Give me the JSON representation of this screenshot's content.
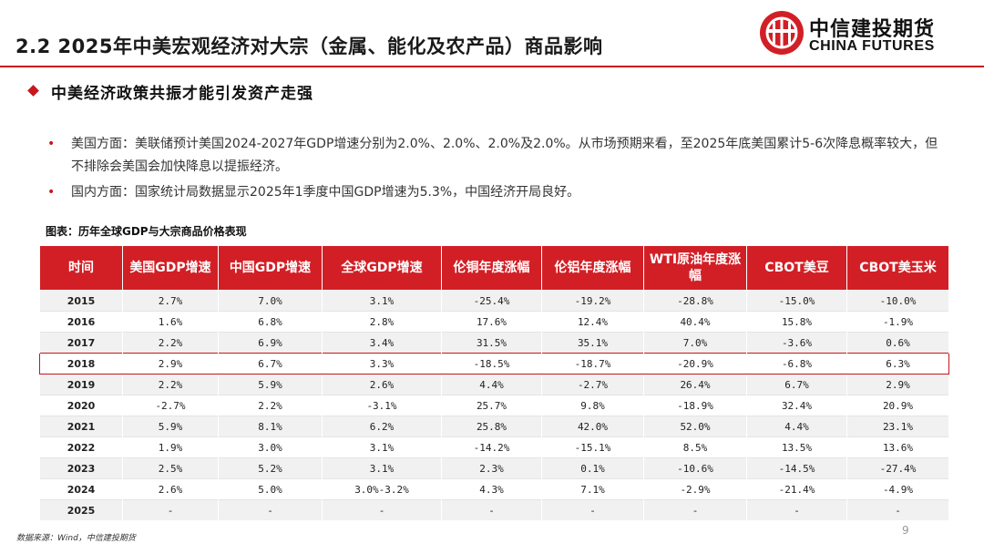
{
  "header": {
    "title": "2.2 2025年中美宏观经济对大宗（金属、能化及农产品）商品影响",
    "logo_cn": "中信建投期货",
    "logo_en": "CHINA FUTURES"
  },
  "section": {
    "heading": "中美经济政策共振才能引发资产走强"
  },
  "bullets": [
    "美国方面：美联储预计美国2024-2027年GDP增速分别为2.0%、2.0%、2.0%及2.0%。从市场预期来看，至2025年底美国累计5-6次降息概率较大，但不排除会美国会加快降息以提振经济。",
    "国内方面：国家统计局数据显示2025年1季度中国GDP增速为5.3%，中国经济开局良好。"
  ],
  "table": {
    "caption": "图表：历年全球GDP与大宗商品价格表现",
    "headers": [
      "时间",
      "美国GDP增速",
      "中国GDP增速",
      "全球GDP增速",
      "伦铜年度涨幅",
      "伦铝年度涨幅",
      "WTI原油年度涨幅",
      "CBOT美豆",
      "CBOT美玉米"
    ],
    "rows": [
      [
        "2015",
        "2.7%",
        "7.0%",
        "3.1%",
        "-25.4%",
        "-19.2%",
        "-28.8%",
        "-15.0%",
        "-10.0%"
      ],
      [
        "2016",
        "1.6%",
        "6.8%",
        "2.8%",
        "17.6%",
        "12.4%",
        "40.4%",
        "15.8%",
        "-1.9%"
      ],
      [
        "2017",
        "2.2%",
        "6.9%",
        "3.4%",
        "31.5%",
        "35.1%",
        "7.0%",
        "-3.6%",
        "0.6%"
      ],
      [
        "2018",
        "2.9%",
        "6.7%",
        "3.3%",
        "-18.5%",
        "-18.7%",
        "-20.9%",
        "-6.8%",
        "6.3%"
      ],
      [
        "2019",
        "2.2%",
        "5.9%",
        "2.6%",
        "4.4%",
        "-2.7%",
        "26.4%",
        "6.7%",
        "2.9%"
      ],
      [
        "2020",
        "-2.7%",
        "2.2%",
        "-3.1%",
        "25.7%",
        "9.8%",
        "-18.9%",
        "32.4%",
        "20.9%"
      ],
      [
        "2021",
        "5.9%",
        "8.1%",
        "6.2%",
        "25.8%",
        "42.0%",
        "52.0%",
        "4.4%",
        "23.1%"
      ],
      [
        "2022",
        "1.9%",
        "3.0%",
        "3.1%",
        "-14.2%",
        "-15.1%",
        "8.5%",
        "13.5%",
        "13.6%"
      ],
      [
        "2023",
        "2.5%",
        "5.2%",
        "3.1%",
        "2.3%",
        "0.1%",
        "-10.6%",
        "-14.5%",
        "-27.4%"
      ],
      [
        "2024",
        "2.6%",
        "5.0%",
        "3.0%-3.2%",
        "4.3%",
        "7.1%",
        "-2.9%",
        "-21.4%",
        "-4.9%"
      ],
      [
        "2025",
        "-",
        "-",
        "-",
        "-",
        "-",
        "-",
        "-",
        "-"
      ]
    ],
    "highlight_row_year": "2018"
  },
  "footer": {
    "source": "数据来源：Wind，中信建投期货",
    "page": "9"
  },
  "colors": {
    "accent": "#c8161d",
    "header_fill": "#d21f26",
    "zebra": "#f1f1f1"
  }
}
